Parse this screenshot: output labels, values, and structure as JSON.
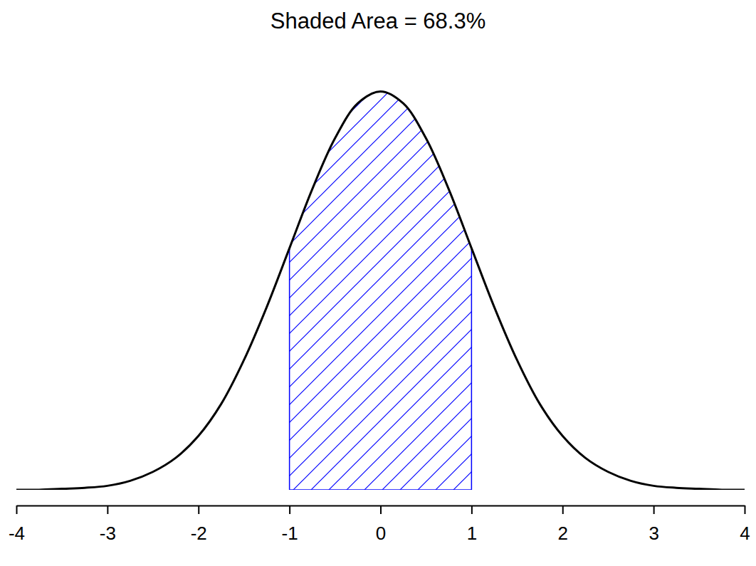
{
  "chart_data": {
    "type": "area",
    "title": "Shaded Area = 68.3%",
    "x": [
      -4,
      -3.75,
      -3.5,
      -3.25,
      -3,
      -2.75,
      -2.5,
      -2.25,
      -2,
      -1.75,
      -1.5,
      -1.25,
      -1,
      -0.75,
      -0.5,
      -0.25,
      0,
      0.25,
      0.5,
      0.75,
      1,
      1.25,
      1.5,
      1.75,
      2,
      2.25,
      2.5,
      2.75,
      3,
      3.25,
      3.5,
      3.75,
      4
    ],
    "values": [
      0.0,
      0.0,
      0.001,
      0.002,
      0.004,
      0.009,
      0.018,
      0.032,
      0.054,
      0.086,
      0.13,
      0.183,
      0.242,
      0.301,
      0.352,
      0.387,
      0.399,
      0.387,
      0.352,
      0.301,
      0.242,
      0.183,
      0.13,
      0.086,
      0.054,
      0.032,
      0.018,
      0.009,
      0.004,
      0.002,
      0.001,
      0.0,
      0.0
    ],
    "shaded_range": [
      -1,
      1
    ],
    "color": "#0000ff",
    "xlim": [
      -4,
      4
    ],
    "xticks": [
      -4,
      -3,
      -2,
      -1,
      0,
      1,
      2,
      3,
      4
    ],
    "ylim": [
      0,
      0.4
    ],
    "tick_labels": "x"
  }
}
